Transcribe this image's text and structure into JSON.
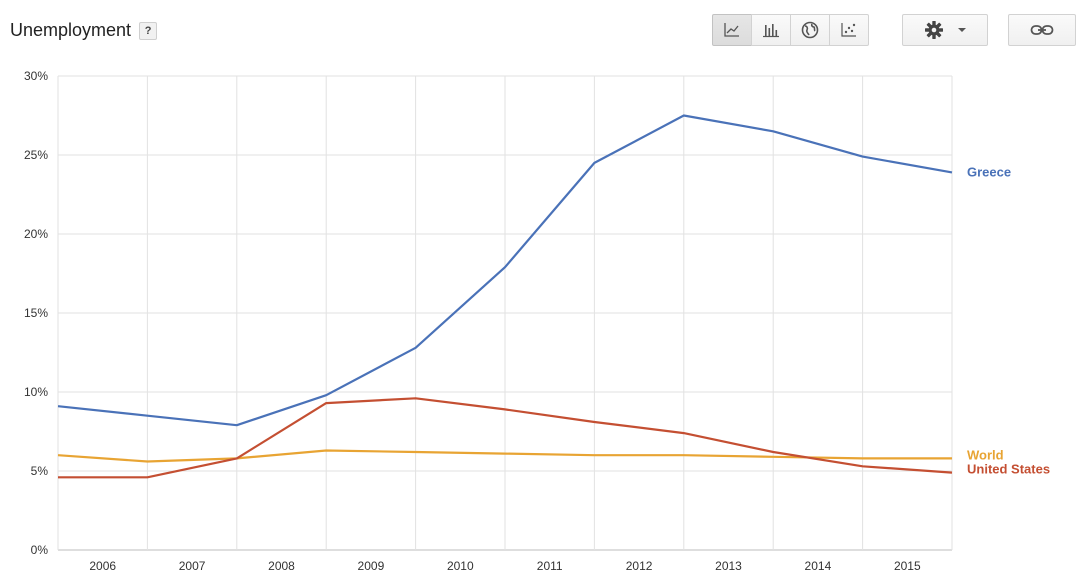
{
  "header": {
    "title": "Unemployment",
    "help_label": "?",
    "view_buttons": [
      {
        "icon": "line-chart-icon",
        "active": true
      },
      {
        "icon": "bar-chart-icon",
        "active": false
      },
      {
        "icon": "globe-icon",
        "active": false
      },
      {
        "icon": "scatter-chart-icon",
        "active": false
      }
    ],
    "settings_icon": "gear-icon",
    "dropdown_icon": "caret-down-icon",
    "link_icon": "chain-link-icon"
  },
  "chart_data": {
    "type": "line",
    "title": "Unemployment",
    "x": [
      2005.5,
      2006.5,
      2007.5,
      2008.5,
      2009.5,
      2010.5,
      2011.5,
      2012.5,
      2013.5,
      2014.5,
      2015.5
    ],
    "x_tick_labels": [
      "2006",
      "2007",
      "2008",
      "2009",
      "2010",
      "2011",
      "2012",
      "2013",
      "2014",
      "2015"
    ],
    "xlim": [
      2005.5,
      2015.5
    ],
    "ylim": [
      0,
      30
    ],
    "y_ticks": [
      0,
      5,
      10,
      15,
      20,
      25,
      30
    ],
    "y_tick_labels": [
      "0%",
      "5%",
      "10%",
      "15%",
      "20%",
      "25%",
      "30%"
    ],
    "grid": true,
    "legend": "right-end labels",
    "series": [
      {
        "name": "Greece",
        "color": "#4a72b8",
        "values": [
          9.1,
          8.5,
          7.9,
          9.8,
          12.8,
          17.9,
          24.5,
          27.5,
          26.5,
          24.9,
          23.9
        ]
      },
      {
        "name": "World",
        "color": "#e8a433",
        "values": [
          6.0,
          5.6,
          5.8,
          6.3,
          6.2,
          6.1,
          6.0,
          6.0,
          5.9,
          5.8,
          5.8
        ]
      },
      {
        "name": "United States",
        "color": "#c44f32",
        "values": [
          4.6,
          4.6,
          5.8,
          9.3,
          9.6,
          8.9,
          8.1,
          7.4,
          6.2,
          5.3,
          4.9
        ]
      }
    ]
  }
}
